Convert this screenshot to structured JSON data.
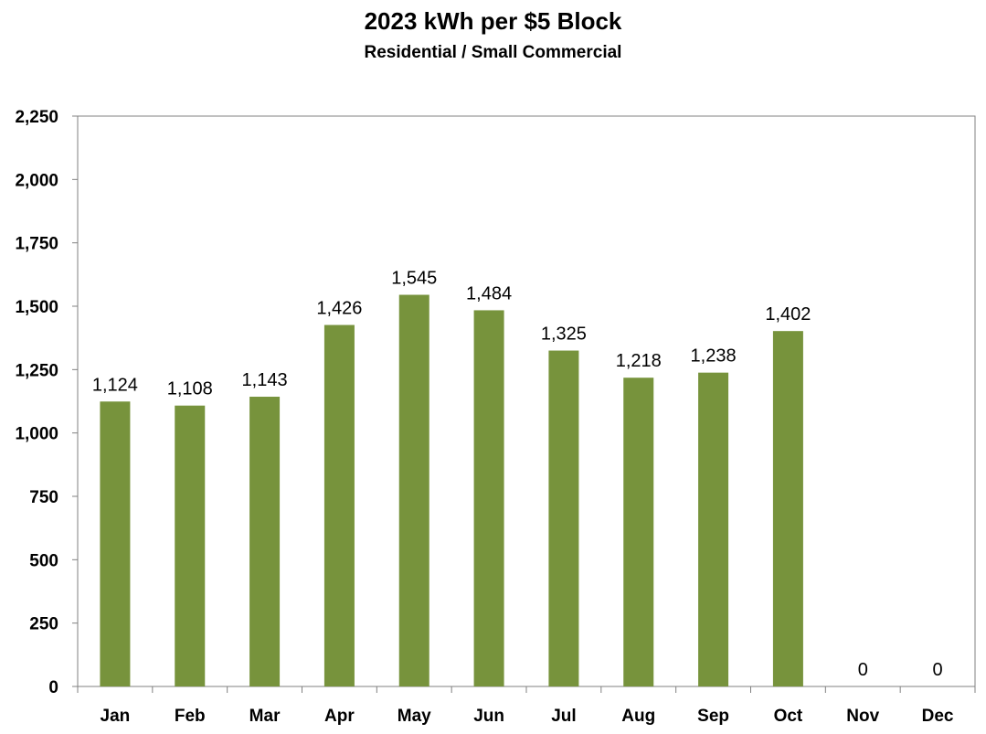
{
  "chart_data": {
    "type": "bar",
    "title": "2023 kWh per $5 Block",
    "subtitle": "Residential / Small Commercial",
    "xlabel": "",
    "ylabel": "",
    "categories": [
      "Jan",
      "Feb",
      "Mar",
      "Apr",
      "May",
      "Jun",
      "Jul",
      "Aug",
      "Sep",
      "Oct",
      "Nov",
      "Dec"
    ],
    "values": [
      1124,
      1108,
      1143,
      1426,
      1545,
      1484,
      1325,
      1218,
      1238,
      1402,
      0,
      0
    ],
    "value_labels": [
      "1,124",
      "1,108",
      "1,143",
      "1,426",
      "1,545",
      "1,484",
      "1,325",
      "1,218",
      "1,238",
      "1,402",
      "0",
      "0"
    ],
    "ylim": [
      0,
      2250
    ],
    "yticks": [
      0,
      250,
      500,
      750,
      1000,
      1250,
      1500,
      1750,
      2000,
      2250
    ],
    "ytick_labels": [
      "0",
      "250",
      "500",
      "750",
      "1,000",
      "1,250",
      "1,500",
      "1,750",
      "2,000",
      "2,250"
    ],
    "grid": false,
    "legend": "none",
    "bar_color": "#77933c"
  }
}
